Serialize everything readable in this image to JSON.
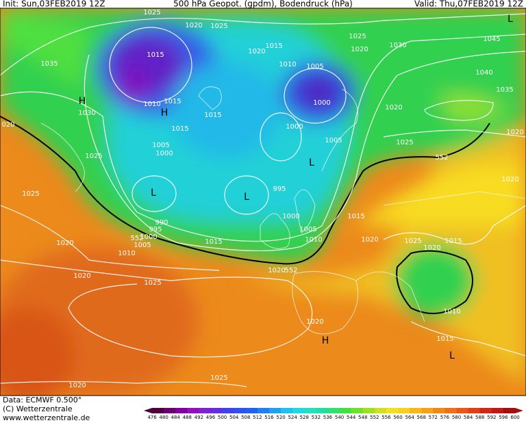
{
  "header": {
    "init": "Init: Sun,03FEB2019 12Z",
    "title": "500 hPa Geopot. (gpdm), Bodendruck (hPa)",
    "valid": "Valid: Thu,07FEB2019 12Z"
  },
  "footer": {
    "data": "Data: ECMWF  0.500°",
    "copyright": "(C) Wetterzentrale",
    "url": "www.wetterzentrale.de"
  },
  "map": {
    "labels": [
      "1025",
      "1020",
      "1025",
      "1015",
      "1035",
      "1030",
      "H",
      "1010",
      "1015",
      "H",
      "020",
      "1015",
      "1015",
      "1005",
      "1000",
      "1025",
      "1025",
      "L",
      "L",
      "995",
      "1000",
      "990",
      "995",
      "1000",
      "1005",
      "1010",
      "1015",
      "1020",
      "1020",
      "1025",
      "1020",
      "1005",
      "1010",
      "1015",
      "1020",
      "1025",
      "1020",
      "1015",
      "1010",
      "1015",
      "1020",
      "H",
      "L",
      "1025",
      "1020",
      "1025",
      "1020",
      "1035",
      "1040",
      "1045",
      "1030",
      "1025",
      "1020",
      "1015",
      "1020",
      "1010",
      "1005",
      "1000",
      "1000",
      "1005",
      "L",
      "1020",
      "1020",
      "L",
      "552",
      "552",
      "552"
    ]
  },
  "colorbar": {
    "ticks": [
      476,
      480,
      484,
      488,
      492,
      496,
      500,
      504,
      508,
      512,
      516,
      520,
      524,
      528,
      532,
      536,
      540,
      544,
      548,
      552,
      556,
      560,
      564,
      568,
      572,
      576,
      580,
      584,
      588,
      592,
      596,
      600
    ],
    "colors": [
      "#4b0040",
      "#6a0070",
      "#8000a0",
      "#9010c0",
      "#8020d0",
      "#6030e0",
      "#4040f0",
      "#3050f0",
      "#2060f0",
      "#2080f0",
      "#20a0f0",
      "#20c0f0",
      "#20d8e0",
      "#20e0c0",
      "#20e0a0",
      "#30e070",
      "#40e040",
      "#70e030",
      "#a0e020",
      "#d0e020",
      "#f0e020",
      "#f8d020",
      "#f8b818",
      "#f8a018",
      "#f08818",
      "#f07018",
      "#e85818",
      "#e04018",
      "#d02818",
      "#c01818",
      "#a01010"
    ]
  }
}
